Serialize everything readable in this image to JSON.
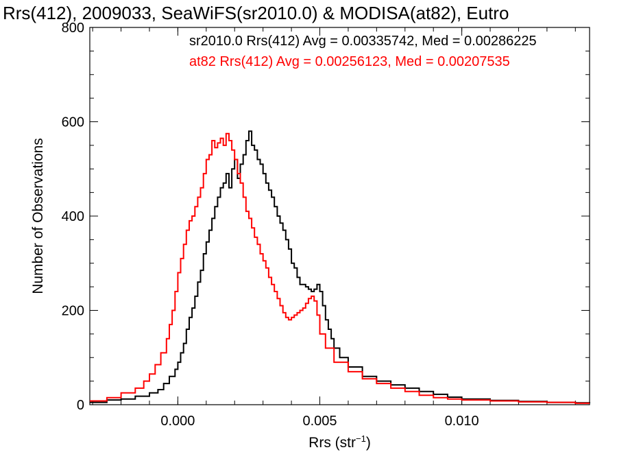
{
  "chart_data": {
    "type": "line",
    "step": true,
    "title": "Rrs(412), 2009033, SeaWiFS(sr2010.0) & MODISA(at82), Eutro",
    "xlabel_base": "Rrs (str",
    "xlabel_sup": "−1",
    "xlabel_end": ")",
    "ylabel": "Number of Observations",
    "xlim": [
      -0.0031,
      0.0145
    ],
    "ylim": [
      0,
      800
    ],
    "xticks": [
      {
        "value": 0.0,
        "label": "0.000"
      },
      {
        "value": 0.005,
        "label": "0.005"
      },
      {
        "value": 0.01,
        "label": "0.010"
      }
    ],
    "yticks": [
      {
        "value": 0,
        "label": "0"
      },
      {
        "value": 200,
        "label": "200"
      },
      {
        "value": 400,
        "label": "400"
      },
      {
        "value": 600,
        "label": "600"
      },
      {
        "value": 800,
        "label": "800"
      }
    ],
    "legend": [
      {
        "text": "sr2010.0 Rrs(412) Avg = 0.00335742, Med = 0.00286225",
        "color": "#000000"
      },
      {
        "text": "at82 Rrs(412) Avg = 0.00256123, Med = 0.00207535",
        "color": "#ff0000"
      }
    ],
    "series": [
      {
        "name": "sr2010.0",
        "color": "#000000",
        "points": [
          [
            -0.0031,
            5
          ],
          [
            -0.0025,
            10
          ],
          [
            -0.002,
            12
          ],
          [
            -0.0015,
            18
          ],
          [
            -0.001,
            25
          ],
          [
            -0.0007,
            32
          ],
          [
            -0.0005,
            45
          ],
          [
            -0.0003,
            60
          ],
          [
            -0.0001,
            75
          ],
          [
            0.0,
            90
          ],
          [
            0.0001,
            110
          ],
          [
            0.0002,
            130
          ],
          [
            0.0003,
            160
          ],
          [
            0.0004,
            185
          ],
          [
            0.0005,
            205
          ],
          [
            0.0006,
            230
          ],
          [
            0.0007,
            260
          ],
          [
            0.0008,
            285
          ],
          [
            0.0009,
            320
          ],
          [
            0.001,
            345
          ],
          [
            0.0011,
            370
          ],
          [
            0.0012,
            395
          ],
          [
            0.0013,
            420
          ],
          [
            0.0014,
            440
          ],
          [
            0.0015,
            460
          ],
          [
            0.0016,
            470
          ],
          [
            0.0017,
            490
          ],
          [
            0.0018,
            460
          ],
          [
            0.0019,
            500
          ],
          [
            0.002,
            520
          ],
          [
            0.0021,
            480
          ],
          [
            0.0022,
            510
          ],
          [
            0.0023,
            530
          ],
          [
            0.0024,
            560
          ],
          [
            0.0025,
            580
          ],
          [
            0.0026,
            550
          ],
          [
            0.0027,
            540
          ],
          [
            0.0028,
            520
          ],
          [
            0.0029,
            510
          ],
          [
            0.003,
            490
          ],
          [
            0.0031,
            470
          ],
          [
            0.0032,
            455
          ],
          [
            0.0033,
            440
          ],
          [
            0.0034,
            420
          ],
          [
            0.0035,
            400
          ],
          [
            0.0036,
            385
          ],
          [
            0.0037,
            370
          ],
          [
            0.0038,
            350
          ],
          [
            0.0039,
            330
          ],
          [
            0.004,
            300
          ],
          [
            0.0041,
            290
          ],
          [
            0.0042,
            270
          ],
          [
            0.0043,
            255
          ],
          [
            0.0044,
            255
          ],
          [
            0.0045,
            250
          ],
          [
            0.0046,
            245
          ],
          [
            0.0047,
            240
          ],
          [
            0.0048,
            245
          ],
          [
            0.0049,
            255
          ],
          [
            0.005,
            240
          ],
          [
            0.0051,
            210
          ],
          [
            0.0052,
            180
          ],
          [
            0.0053,
            160
          ],
          [
            0.0054,
            140
          ],
          [
            0.0055,
            120
          ],
          [
            0.0057,
            100
          ],
          [
            0.006,
            80
          ],
          [
            0.0065,
            60
          ],
          [
            0.007,
            50
          ],
          [
            0.0075,
            42
          ],
          [
            0.008,
            35
          ],
          [
            0.0085,
            28
          ],
          [
            0.009,
            22
          ],
          [
            0.0095,
            16
          ],
          [
            0.01,
            12
          ],
          [
            0.011,
            9
          ],
          [
            0.012,
            7
          ],
          [
            0.013,
            5
          ],
          [
            0.014,
            4
          ],
          [
            0.0145,
            3
          ]
        ]
      },
      {
        "name": "at82",
        "color": "#ff0000",
        "points": [
          [
            -0.0031,
            8
          ],
          [
            -0.0025,
            15
          ],
          [
            -0.002,
            25
          ],
          [
            -0.0015,
            35
          ],
          [
            -0.0012,
            50
          ],
          [
            -0.001,
            65
          ],
          [
            -0.0008,
            85
          ],
          [
            -0.0006,
            110
          ],
          [
            -0.0004,
            140
          ],
          [
            -0.0003,
            170
          ],
          [
            -0.0002,
            200
          ],
          [
            -0.0001,
            240
          ],
          [
            0.0,
            280
          ],
          [
            0.0001,
            310
          ],
          [
            0.0002,
            340
          ],
          [
            0.0003,
            370
          ],
          [
            0.0004,
            390
          ],
          [
            0.0005,
            400
          ],
          [
            0.0006,
            420
          ],
          [
            0.0007,
            440
          ],
          [
            0.0008,
            460
          ],
          [
            0.0009,
            490
          ],
          [
            0.001,
            520
          ],
          [
            0.0011,
            530
          ],
          [
            0.0012,
            560
          ],
          [
            0.0013,
            545
          ],
          [
            0.0014,
            555
          ],
          [
            0.0015,
            565
          ],
          [
            0.0016,
            550
          ],
          [
            0.0017,
            575
          ],
          [
            0.0018,
            560
          ],
          [
            0.0019,
            540
          ],
          [
            0.002,
            520
          ],
          [
            0.0021,
            490
          ],
          [
            0.0022,
            470
          ],
          [
            0.0023,
            440
          ],
          [
            0.0024,
            410
          ],
          [
            0.0025,
            395
          ],
          [
            0.0026,
            375
          ],
          [
            0.0027,
            355
          ],
          [
            0.0028,
            340
          ],
          [
            0.0029,
            320
          ],
          [
            0.003,
            305
          ],
          [
            0.0031,
            290
          ],
          [
            0.0032,
            270
          ],
          [
            0.0033,
            255
          ],
          [
            0.0034,
            240
          ],
          [
            0.0035,
            225
          ],
          [
            0.0036,
            210
          ],
          [
            0.0037,
            195
          ],
          [
            0.0038,
            185
          ],
          [
            0.0039,
            180
          ],
          [
            0.004,
            185
          ],
          [
            0.0041,
            190
          ],
          [
            0.0042,
            195
          ],
          [
            0.0043,
            200
          ],
          [
            0.0044,
            205
          ],
          [
            0.0045,
            215
          ],
          [
            0.0046,
            225
          ],
          [
            0.0047,
            230
          ],
          [
            0.0048,
            220
          ],
          [
            0.0049,
            190
          ],
          [
            0.005,
            150
          ],
          [
            0.0052,
            120
          ],
          [
            0.0055,
            90
          ],
          [
            0.006,
            70
          ],
          [
            0.0065,
            55
          ],
          [
            0.007,
            45
          ],
          [
            0.0075,
            35
          ],
          [
            0.008,
            28
          ],
          [
            0.0085,
            20
          ],
          [
            0.009,
            15
          ],
          [
            0.0095,
            12
          ],
          [
            0.01,
            10
          ],
          [
            0.011,
            8
          ],
          [
            0.012,
            6
          ],
          [
            0.013,
            5
          ],
          [
            0.014,
            3
          ],
          [
            0.0145,
            3
          ]
        ]
      }
    ]
  }
}
